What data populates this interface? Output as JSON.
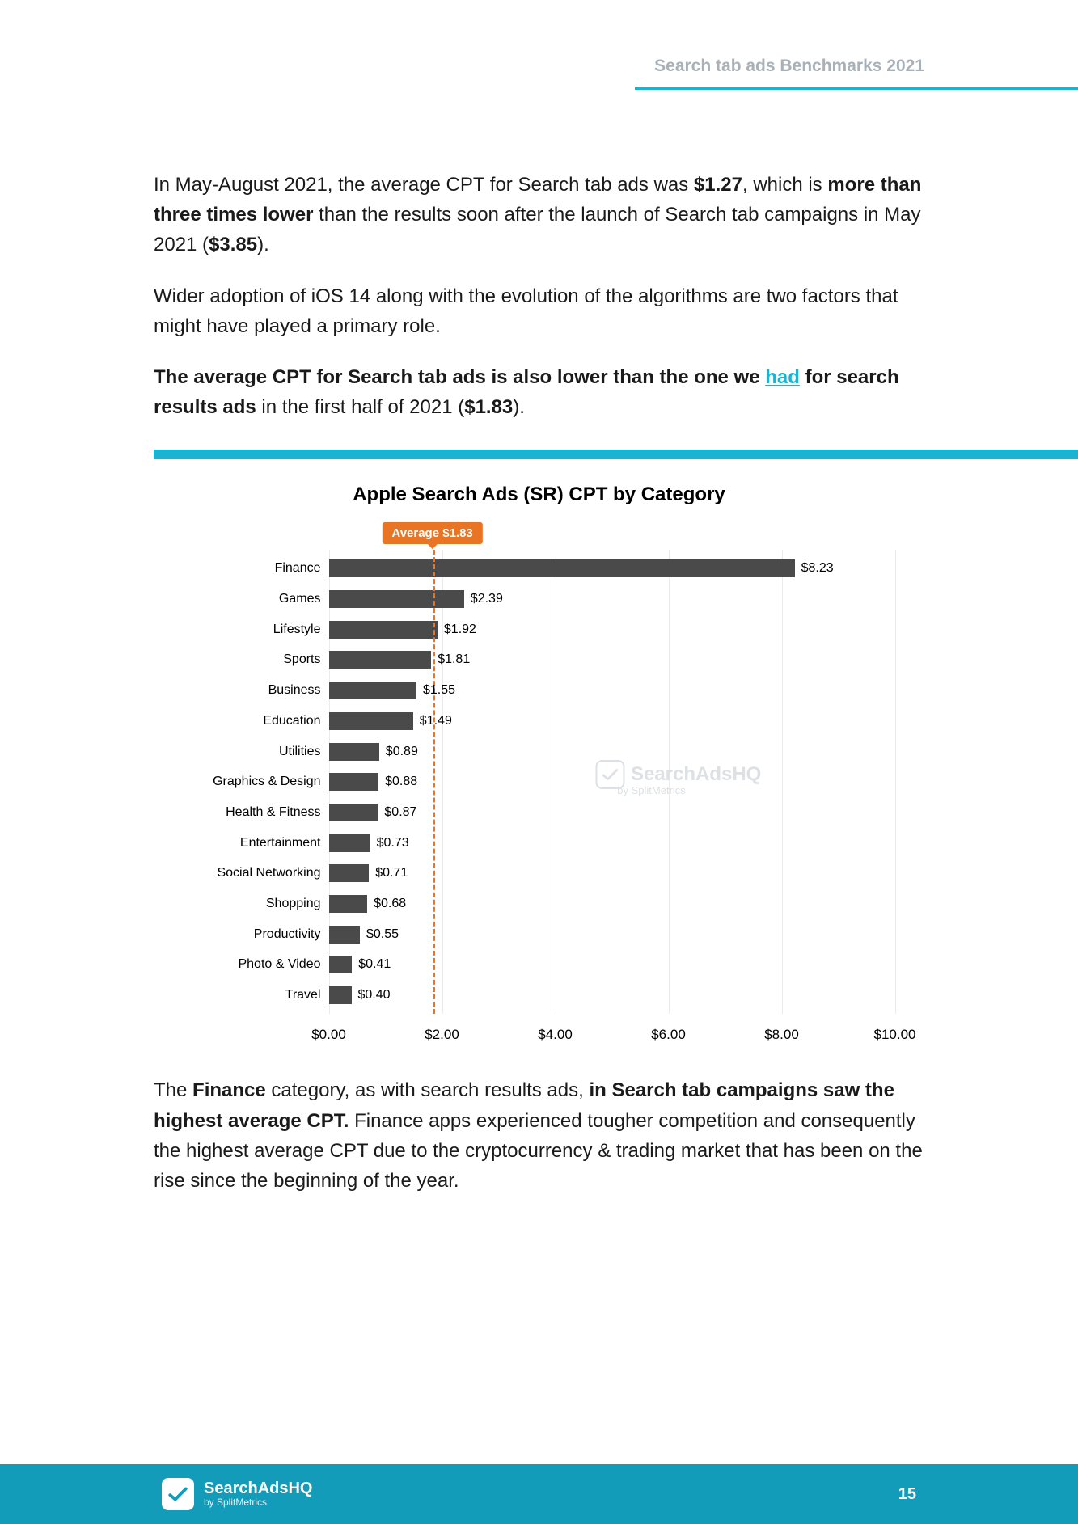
{
  "header": {
    "label": "Search tab ads Benchmarks 2021",
    "rule_color": "#1bb3d2"
  },
  "paragraphs": {
    "p1_a": "In May-August 2021, the average CPT for Search tab ads was ",
    "p1_b": "$1.27",
    "p1_c": ", which is ",
    "p1_d": "more than three times lower",
    "p1_e": " than the results soon after the launch of Search tab campaigns in May 2021 (",
    "p1_f": "$3.85",
    "p1_g": ").",
    "p2": "Wider adoption of iOS 14 along with the evolution of the algorithms are two factors that might have played a primary role.",
    "p3_a": "The average CPT for Search tab ads is also lower than the one we ",
    "p3_link": "had",
    "p3_b": " for search results ads",
    "p3_c": " in the first half of 2021 (",
    "p3_d": "$1.83",
    "p3_e": ")."
  },
  "chart": {
    "title": "Apple Search Ads (SR) CPT by Category",
    "type": "horizontal-bar",
    "average_label": "Average $1.83",
    "average_value": 1.83,
    "xlim": [
      0,
      10
    ],
    "xtick_step": 2,
    "xtick_labels": [
      "$0.00",
      "$2.00",
      "$4.00",
      "$6.00",
      "$8.00",
      "$10.00"
    ],
    "bar_color": "#4a4a4a",
    "avg_color": "#e87424",
    "grid_color": "#e9ecef",
    "background_color": "#ffffff",
    "label_fontsize": 16,
    "title_fontsize": 24,
    "categories": [
      {
        "label": "Finance",
        "value": 8.23,
        "display": "$8.23"
      },
      {
        "label": "Games",
        "value": 2.39,
        "display": "$2.39"
      },
      {
        "label": "Lifestyle",
        "value": 1.92,
        "display": "$1.92"
      },
      {
        "label": "Sports",
        "value": 1.81,
        "display": "$1.81"
      },
      {
        "label": "Business",
        "value": 1.55,
        "display": "$1.55"
      },
      {
        "label": "Education",
        "value": 1.49,
        "display": "$1.49"
      },
      {
        "label": "Utilities",
        "value": 0.89,
        "display": "$0.89"
      },
      {
        "label": "Graphics & Design",
        "value": 0.88,
        "display": "$0.88"
      },
      {
        "label": "Health & Fitness",
        "value": 0.87,
        "display": "$0.87"
      },
      {
        "label": "Entertainment",
        "value": 0.73,
        "display": "$0.73"
      },
      {
        "label": "Social Networking",
        "value": 0.71,
        "display": "$0.71"
      },
      {
        "label": "Shopping",
        "value": 0.68,
        "display": "$0.68"
      },
      {
        "label": "Productivity",
        "value": 0.55,
        "display": "$0.55"
      },
      {
        "label": "Photo & Video",
        "value": 0.41,
        "display": "$0.41"
      },
      {
        "label": "Travel",
        "value": 0.4,
        "display": "$0.40"
      }
    ],
    "watermark": "SearchAdsHQ",
    "watermark_sub": "by SplitMetrics"
  },
  "conclusion": {
    "a": "The ",
    "b": "Finance",
    "c": " category, as with search results ads, ",
    "d": "in Search tab campaigns saw the highest average CPT.",
    "e": " Finance apps experienced tougher competition and consequently the highest average CPT due to the cryptocurrency & trading market that has been on the rise since the beginning of the year."
  },
  "footer": {
    "brand": "SearchAdsHQ",
    "byline": "by SplitMetrics",
    "page_number": "15",
    "bg_color": "#129cb9"
  }
}
